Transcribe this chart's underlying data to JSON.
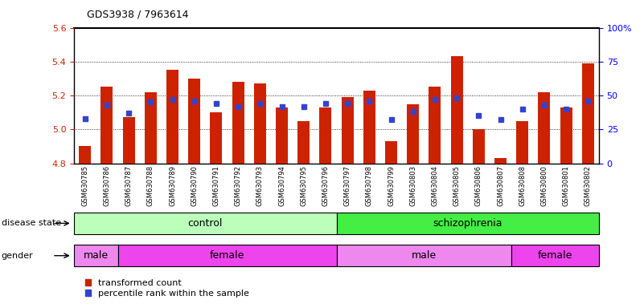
{
  "title": "GDS3938 / 7963614",
  "samples": [
    "GSM630785",
    "GSM630786",
    "GSM630787",
    "GSM630788",
    "GSM630789",
    "GSM630790",
    "GSM630791",
    "GSM630792",
    "GSM630793",
    "GSM630794",
    "GSM630795",
    "GSM630796",
    "GSM630797",
    "GSM630798",
    "GSM630799",
    "GSM630803",
    "GSM630804",
    "GSM630805",
    "GSM630806",
    "GSM630807",
    "GSM630808",
    "GSM630800",
    "GSM630801",
    "GSM630802"
  ],
  "bar_values": [
    4.9,
    5.25,
    5.07,
    5.22,
    5.35,
    5.3,
    5.1,
    5.28,
    5.27,
    5.13,
    5.05,
    5.13,
    5.19,
    5.23,
    4.93,
    5.15,
    5.25,
    5.43,
    5.0,
    4.83,
    5.05,
    5.22,
    5.13,
    5.39
  ],
  "percentile_values": [
    33,
    43,
    37,
    45,
    47,
    46,
    44,
    42,
    44,
    42,
    42,
    44,
    44,
    46,
    32,
    38,
    47,
    48,
    35,
    32,
    40,
    43,
    40,
    46
  ],
  "ylim_left": [
    4.8,
    5.6
  ],
  "ylim_right": [
    0,
    100
  ],
  "yticks_left": [
    4.8,
    5.0,
    5.2,
    5.4,
    5.6
  ],
  "yticks_right": [
    0,
    25,
    50,
    75,
    100
  ],
  "ytick_labels_right": [
    "0",
    "25",
    "50",
    "75",
    "100%"
  ],
  "bar_color": "#cc2200",
  "percentile_color": "#3344cc",
  "bar_width": 0.55,
  "disease_state_groups": [
    {
      "label": "control",
      "start": 0,
      "end": 11,
      "color": "#bbffbb"
    },
    {
      "label": "schizophrenia",
      "start": 12,
      "end": 23,
      "color": "#44ee44"
    }
  ],
  "gender_groups": [
    {
      "label": "male",
      "start": 0,
      "end": 1,
      "color": "#ee88ee"
    },
    {
      "label": "female",
      "start": 2,
      "end": 11,
      "color": "#ee44ee"
    },
    {
      "label": "male",
      "start": 12,
      "end": 19,
      "color": "#ee88ee"
    },
    {
      "label": "female",
      "start": 20,
      "end": 23,
      "color": "#ee44ee"
    }
  ],
  "legend_items": [
    {
      "label": "transformed count",
      "color": "#cc2200"
    },
    {
      "label": "percentile rank within the sample",
      "color": "#3344cc"
    }
  ],
  "background_color": "#ffffff"
}
